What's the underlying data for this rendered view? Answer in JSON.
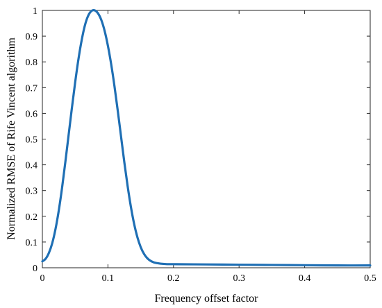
{
  "chart_data": {
    "type": "line",
    "xlabel": "Frequency offset factor",
    "ylabel": "Normalized RMSE of Rife Vincent algorithm",
    "xlim": [
      0,
      0.5
    ],
    "ylim": [
      0,
      1
    ],
    "xticks": [
      "0",
      "0.1",
      "0.2",
      "0.3",
      "0.4",
      "0.5"
    ],
    "yticks": [
      "0",
      "0.1",
      "0.2",
      "0.3",
      "0.4",
      "0.5",
      "0.6",
      "0.7",
      "0.8",
      "0.9",
      "1"
    ],
    "grid": false,
    "line_color": "#1f6fb4",
    "series": [
      {
        "x": [
          0,
          0.005,
          0.01,
          0.015,
          0.02,
          0.025,
          0.03,
          0.035,
          0.04,
          0.045,
          0.05,
          0.055,
          0.06,
          0.065,
          0.07,
          0.075,
          0.08,
          0.085,
          0.09,
          0.095,
          0.1,
          0.105,
          0.11,
          0.115,
          0.12,
          0.125,
          0.13,
          0.135,
          0.14,
          0.145,
          0.15,
          0.155,
          0.16,
          0.165,
          0.17,
          0.175,
          0.18,
          0.185,
          0.19,
          0.2,
          0.25,
          0.3,
          0.35,
          0.4,
          0.45,
          0.5
        ],
        "values": [
          0.025,
          0.035,
          0.058,
          0.095,
          0.15,
          0.222,
          0.31,
          0.41,
          0.515,
          0.62,
          0.72,
          0.81,
          0.885,
          0.943,
          0.98,
          0.998,
          1.0,
          0.988,
          0.962,
          0.92,
          0.862,
          0.79,
          0.705,
          0.61,
          0.51,
          0.41,
          0.318,
          0.237,
          0.17,
          0.118,
          0.08,
          0.054,
          0.037,
          0.027,
          0.021,
          0.018,
          0.016,
          0.015,
          0.014,
          0.014,
          0.013,
          0.012,
          0.011,
          0.01,
          0.009,
          0.009
        ]
      }
    ]
  }
}
